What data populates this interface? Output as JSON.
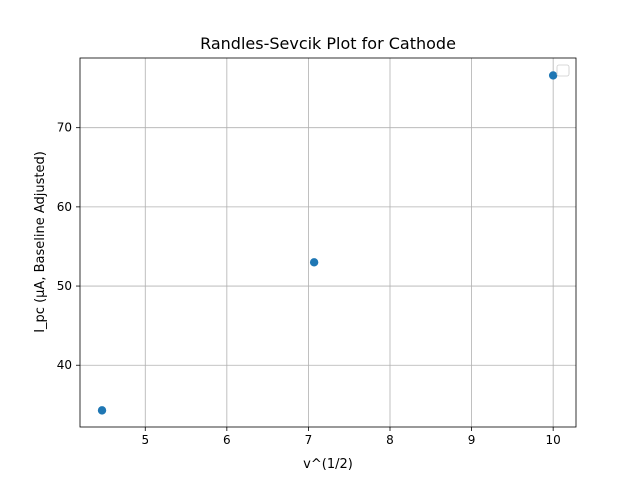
{
  "chart_data": {
    "type": "scatter",
    "title": "Randles-Sevcik Plot for Cathode",
    "xlabel": "v^(1/2)",
    "ylabel": "I_pc (µA, Baseline Adjusted)",
    "xlim": [
      4.2,
      10.28
    ],
    "ylim": [
      32.2,
      78.8
    ],
    "xticks": [
      5,
      6,
      7,
      8,
      9,
      10
    ],
    "yticks": [
      40,
      50,
      60,
      70
    ],
    "grid": true,
    "legend": "top-right",
    "series": [
      {
        "name": "",
        "color": "#1f77b4",
        "x": [
          4.47,
          7.07,
          10.0
        ],
        "y": [
          34.3,
          53.0,
          76.6
        ]
      }
    ]
  }
}
